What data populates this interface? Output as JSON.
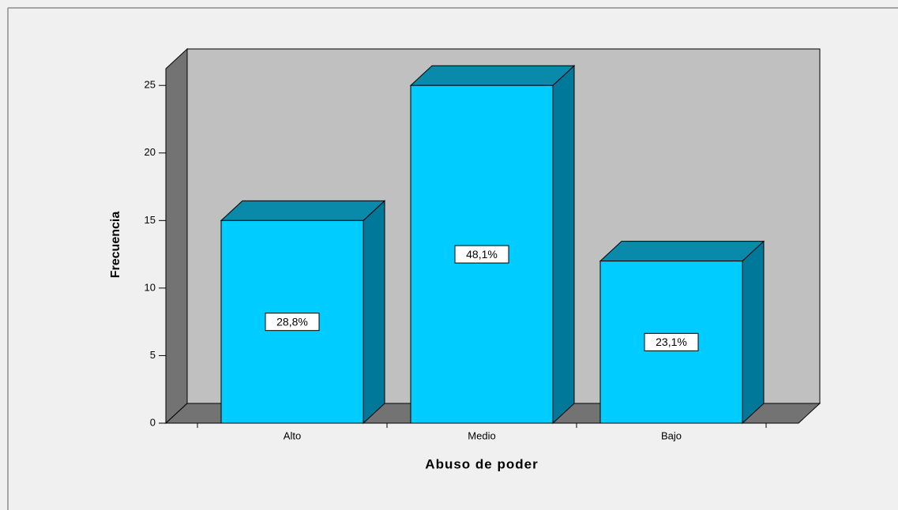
{
  "chart_data": {
    "type": "bar3d",
    "x_label": "Abuso de poder",
    "y_label": "Frecuencia",
    "categories": [
      "Alto",
      "Medio",
      "Bajo"
    ],
    "values": [
      15,
      25,
      12
    ],
    "percentages": {
      "values": [
        28.8,
        48.1,
        23.1
      ],
      "value_labels": [
        "28,8%",
        "48,1%",
        "23,1%"
      ]
    },
    "color": "#00ccff",
    "ylim": [
      0,
      27.7
    ],
    "yticks": [
      0,
      5,
      10,
      15,
      20,
      25
    ]
  }
}
